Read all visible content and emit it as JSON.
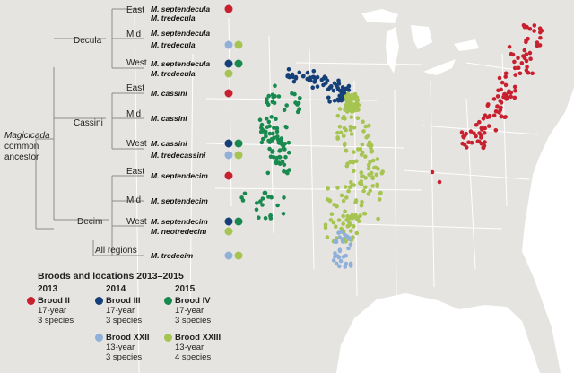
{
  "colors": {
    "brood_ii": "#c8202f",
    "brood_iii": "#153f78",
    "brood_iv": "#198a4f",
    "brood_xxii": "#8fb0d9",
    "brood_xxiii": "#a6c451",
    "land": "#e6e4e0",
    "line": "#8c8c8c"
  },
  "tree": {
    "root": [
      "Magicicada",
      "common",
      "ancestor"
    ],
    "groups": [
      {
        "name": "Decula",
        "regions": [
          {
            "name": "East",
            "species": [
              {
                "name": "M. septendecula",
                "dots": [
                  "brood_ii"
                ]
              },
              {
                "name": "M. tredecula",
                "dots": []
              }
            ]
          },
          {
            "name": "Mid",
            "species": [
              {
                "name": "M. septendecula",
                "dots": []
              },
              {
                "name": "M. tredecula",
                "dots": [
                  "brood_xxii",
                  "brood_xxiii"
                ]
              }
            ]
          },
          {
            "name": "West",
            "species": [
              {
                "name": "M. septendecula",
                "dots": [
                  "brood_iii",
                  "brood_iv"
                ]
              },
              {
                "name": "M. tredecula",
                "dots": [
                  "brood_xxiii"
                ]
              }
            ]
          }
        ]
      },
      {
        "name": "Cassini",
        "regions": [
          {
            "name": "East",
            "species": [
              {
                "name": "M. cassini",
                "dots": [
                  "brood_ii"
                ]
              }
            ]
          },
          {
            "name": "Mid",
            "species": [
              {
                "name": "M. cassini",
                "dots": []
              }
            ]
          },
          {
            "name": "West",
            "species": [
              {
                "name": "M. cassini",
                "dots": [
                  "brood_iii",
                  "brood_iv"
                ]
              },
              {
                "name": "M. tredecassini",
                "dots": [
                  "brood_xxii",
                  "brood_xxiii"
                ]
              }
            ]
          }
        ]
      },
      {
        "name": "Decim",
        "regions": [
          {
            "name": "East",
            "species": [
              {
                "name": "M. septendecim",
                "dots": [
                  "brood_ii"
                ]
              }
            ]
          },
          {
            "name": "Mid",
            "species": [
              {
                "name": "M. septendecim",
                "dots": []
              }
            ]
          },
          {
            "name": "West",
            "species": [
              {
                "name": "M. septendecim",
                "dots": [
                  "brood_iii",
                  "brood_iv"
                ]
              },
              {
                "name": "M. neotredecim",
                "dots": [
                  "brood_xxiii"
                ]
              }
            ]
          },
          {
            "name": "All regions",
            "species": [
              {
                "name": "M. tredecim",
                "dots": [
                  "brood_xxii",
                  "brood_xxiii"
                ]
              }
            ]
          }
        ]
      }
    ]
  },
  "legend": {
    "title": "Broods and locations 2013–2015",
    "years": [
      "2013",
      "2014",
      "2015"
    ],
    "broods": [
      {
        "key": "brood_ii",
        "name": "Brood II",
        "cycle": "17-year",
        "species": "3 species"
      },
      {
        "key": "brood_iii",
        "name": "Brood III",
        "cycle": "17-year",
        "species": "3 species"
      },
      {
        "key": "brood_iv",
        "name": "Brood IV",
        "cycle": "17-year",
        "species": "3 species"
      },
      {
        "key": "brood_xxii",
        "name": "Brood XXII",
        "cycle": "13-year",
        "species": "3 species"
      },
      {
        "key": "brood_xxiii",
        "name": "Brood XXIII",
        "cycle": "13-year",
        "species": "4 species"
      }
    ]
  }
}
